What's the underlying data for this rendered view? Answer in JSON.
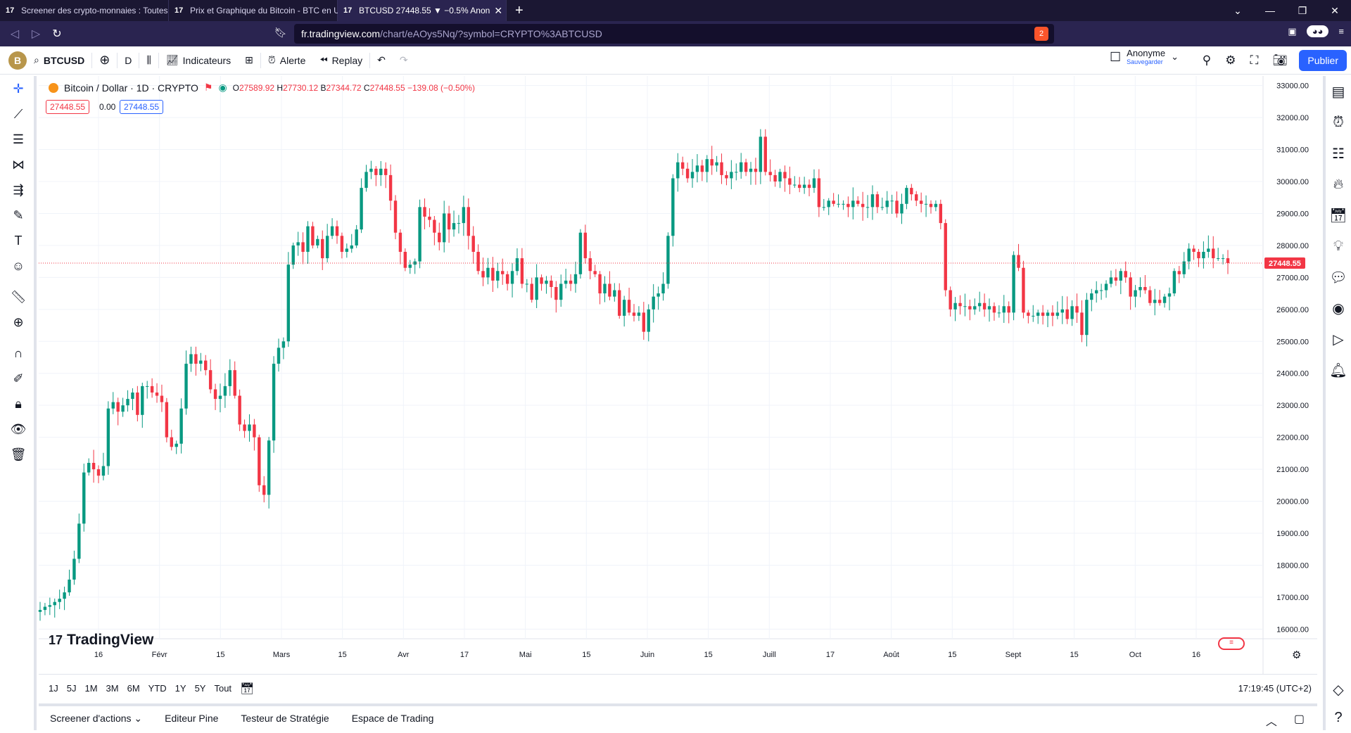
{
  "browser": {
    "tabs": [
      {
        "title": "Screener des crypto-monnaies : Toutes",
        "active": false
      },
      {
        "title": "Prix et Graphique du Bitcoin - BTC en U",
        "active": false
      },
      {
        "title": "BTCUSD 27448.55 ▼ −0.5% Anon",
        "active": true
      }
    ],
    "url_host": "fr.tradingview.com",
    "url_path": "/chart/eAOys5Nq/?symbol=CRYPTO%3ABTCUSD",
    "shield_count": "2"
  },
  "toolbar": {
    "avatar": "B",
    "symbol": "BTCUSD",
    "interval": "D",
    "indicators": "Indicateurs",
    "alert": "Alerte",
    "replay": "Replay",
    "user_name": "Anonyme",
    "user_sub": "Sauvegarder",
    "publish": "Publier"
  },
  "legend": {
    "title": "Bitcoin / Dollar · 1D · CRYPTO",
    "open_label": "O",
    "open": "27589.92",
    "high_label": "H",
    "high": "27730.12",
    "low_label": "B",
    "low": "27344.72",
    "close_label": "C",
    "close": "27448.55",
    "change": "−139.08 (−0.50%)",
    "sell": "27448.55",
    "spread": "0.00",
    "buy": "27448.55"
  },
  "chart_data": {
    "type": "candlestick",
    "symbol": "BTCUSD",
    "last_price": 27448.55,
    "ylim": [
      15700,
      33300
    ],
    "y_ticks": [
      "33000.00",
      "32000.00",
      "31000.00",
      "30000.00",
      "29000.00",
      "28000.00",
      "27000.00",
      "26000.00",
      "25000.00",
      "24000.00",
      "23000.00",
      "22000.00",
      "21000.00",
      "20000.00",
      "19000.00",
      "18000.00",
      "17000.00",
      "16000.00"
    ],
    "x_ticks": [
      "16",
      "Févr",
      "15",
      "Mars",
      "15",
      "Avr",
      "17",
      "Mai",
      "15",
      "Juin",
      "15",
      "Juill",
      "17",
      "Août",
      "15",
      "Sept",
      "15",
      "Oct",
      "16"
    ],
    "closes": [
      16600,
      16700,
      16750,
      16850,
      16950,
      17150,
      17550,
      18200,
      19300,
      20900,
      21200,
      21000,
      20800,
      21100,
      22900,
      23100,
      22800,
      23000,
      23200,
      23400,
      22700,
      23600,
      23600,
      23400,
      23300,
      23100,
      22000,
      21700,
      21800,
      22900,
      24300,
      24600,
      24300,
      24400,
      24100,
      23500,
      23200,
      23300,
      23600,
      24100,
      23300,
      22400,
      22200,
      22400,
      22000,
      20500,
      20200,
      21900,
      24300,
      24800,
      25000,
      27400,
      28000,
      28100,
      27800,
      28600,
      28000,
      28200,
      27600,
      28300,
      28600,
      28300,
      27800,
      27900,
      28000,
      28500,
      29800,
      30300,
      30400,
      30200,
      30400,
      30200,
      29400,
      28400,
      27800,
      27300,
      27400,
      27500,
      29200,
      28900,
      28800,
      28400,
      28100,
      29000,
      28500,
      28700,
      28700,
      29200,
      28300,
      27800,
      27200,
      27000,
      27300,
      26900,
      27200,
      27100,
      26800,
      27200,
      27600,
      26800,
      26800,
      26300,
      27000,
      26800,
      26900,
      26700,
      26300,
      26800,
      26900,
      26800,
      27100,
      28400,
      27600,
      27200,
      27100,
      26500,
      26800,
      26400,
      26600,
      25800,
      26300,
      25900,
      25800,
      25900,
      25300,
      26000,
      26400,
      26500,
      26800,
      28300,
      30100,
      30600,
      30400,
      30100,
      30300,
      30500,
      30300,
      30700,
      30500,
      30600,
      30200,
      30100,
      30300,
      30300,
      30600,
      30300,
      30400,
      30300,
      31400,
      30300,
      30200,
      30000,
      30300,
      30100,
      29900,
      29900,
      29800,
      29900,
      29800,
      30100,
      29200,
      29200,
      29400,
      29300,
      29300,
      29300,
      29200,
      29400,
      29300,
      29200,
      29200,
      29600,
      29200,
      29200,
      29400,
      29400,
      29000,
      29300,
      29800,
      29600,
      29400,
      29300,
      29300,
      29200,
      29300,
      28700,
      26600,
      26000,
      26200,
      26100,
      26100,
      26000,
      26100,
      26200,
      26000,
      26100,
      25900,
      25900,
      26100,
      25900,
      27700,
      27300,
      25900,
      25800,
      25800,
      25900,
      25800,
      25900,
      25800,
      25900,
      26000,
      25700,
      26100,
      25900,
      25200,
      26300,
      26500,
      26600,
      26600,
      26800,
      27000,
      26900,
      27200,
      27000,
      26400,
      26600,
      26700,
      26600,
      26200,
      26300,
      26200,
      26400,
      26500,
      27200,
      27100,
      27500,
      27900,
      27800,
      27600,
      27800,
      27900,
      27600,
      27600,
      27600,
      27449
    ]
  },
  "bottom": {
    "ranges": [
      "1J",
      "5J",
      "1M",
      "3M",
      "6M",
      "YTD",
      "1Y",
      "5Y",
      "Tout"
    ],
    "time": "17:19:45 (UTC+2)",
    "panels": [
      "Screener d'actions",
      "Editeur Pine",
      "Testeur de Stratégie",
      "Espace de Trading"
    ]
  },
  "brand": "TradingView",
  "colors": {
    "up": "#089981",
    "down": "#f23645",
    "accent": "#2962ff",
    "chrome": "#2a2450"
  }
}
